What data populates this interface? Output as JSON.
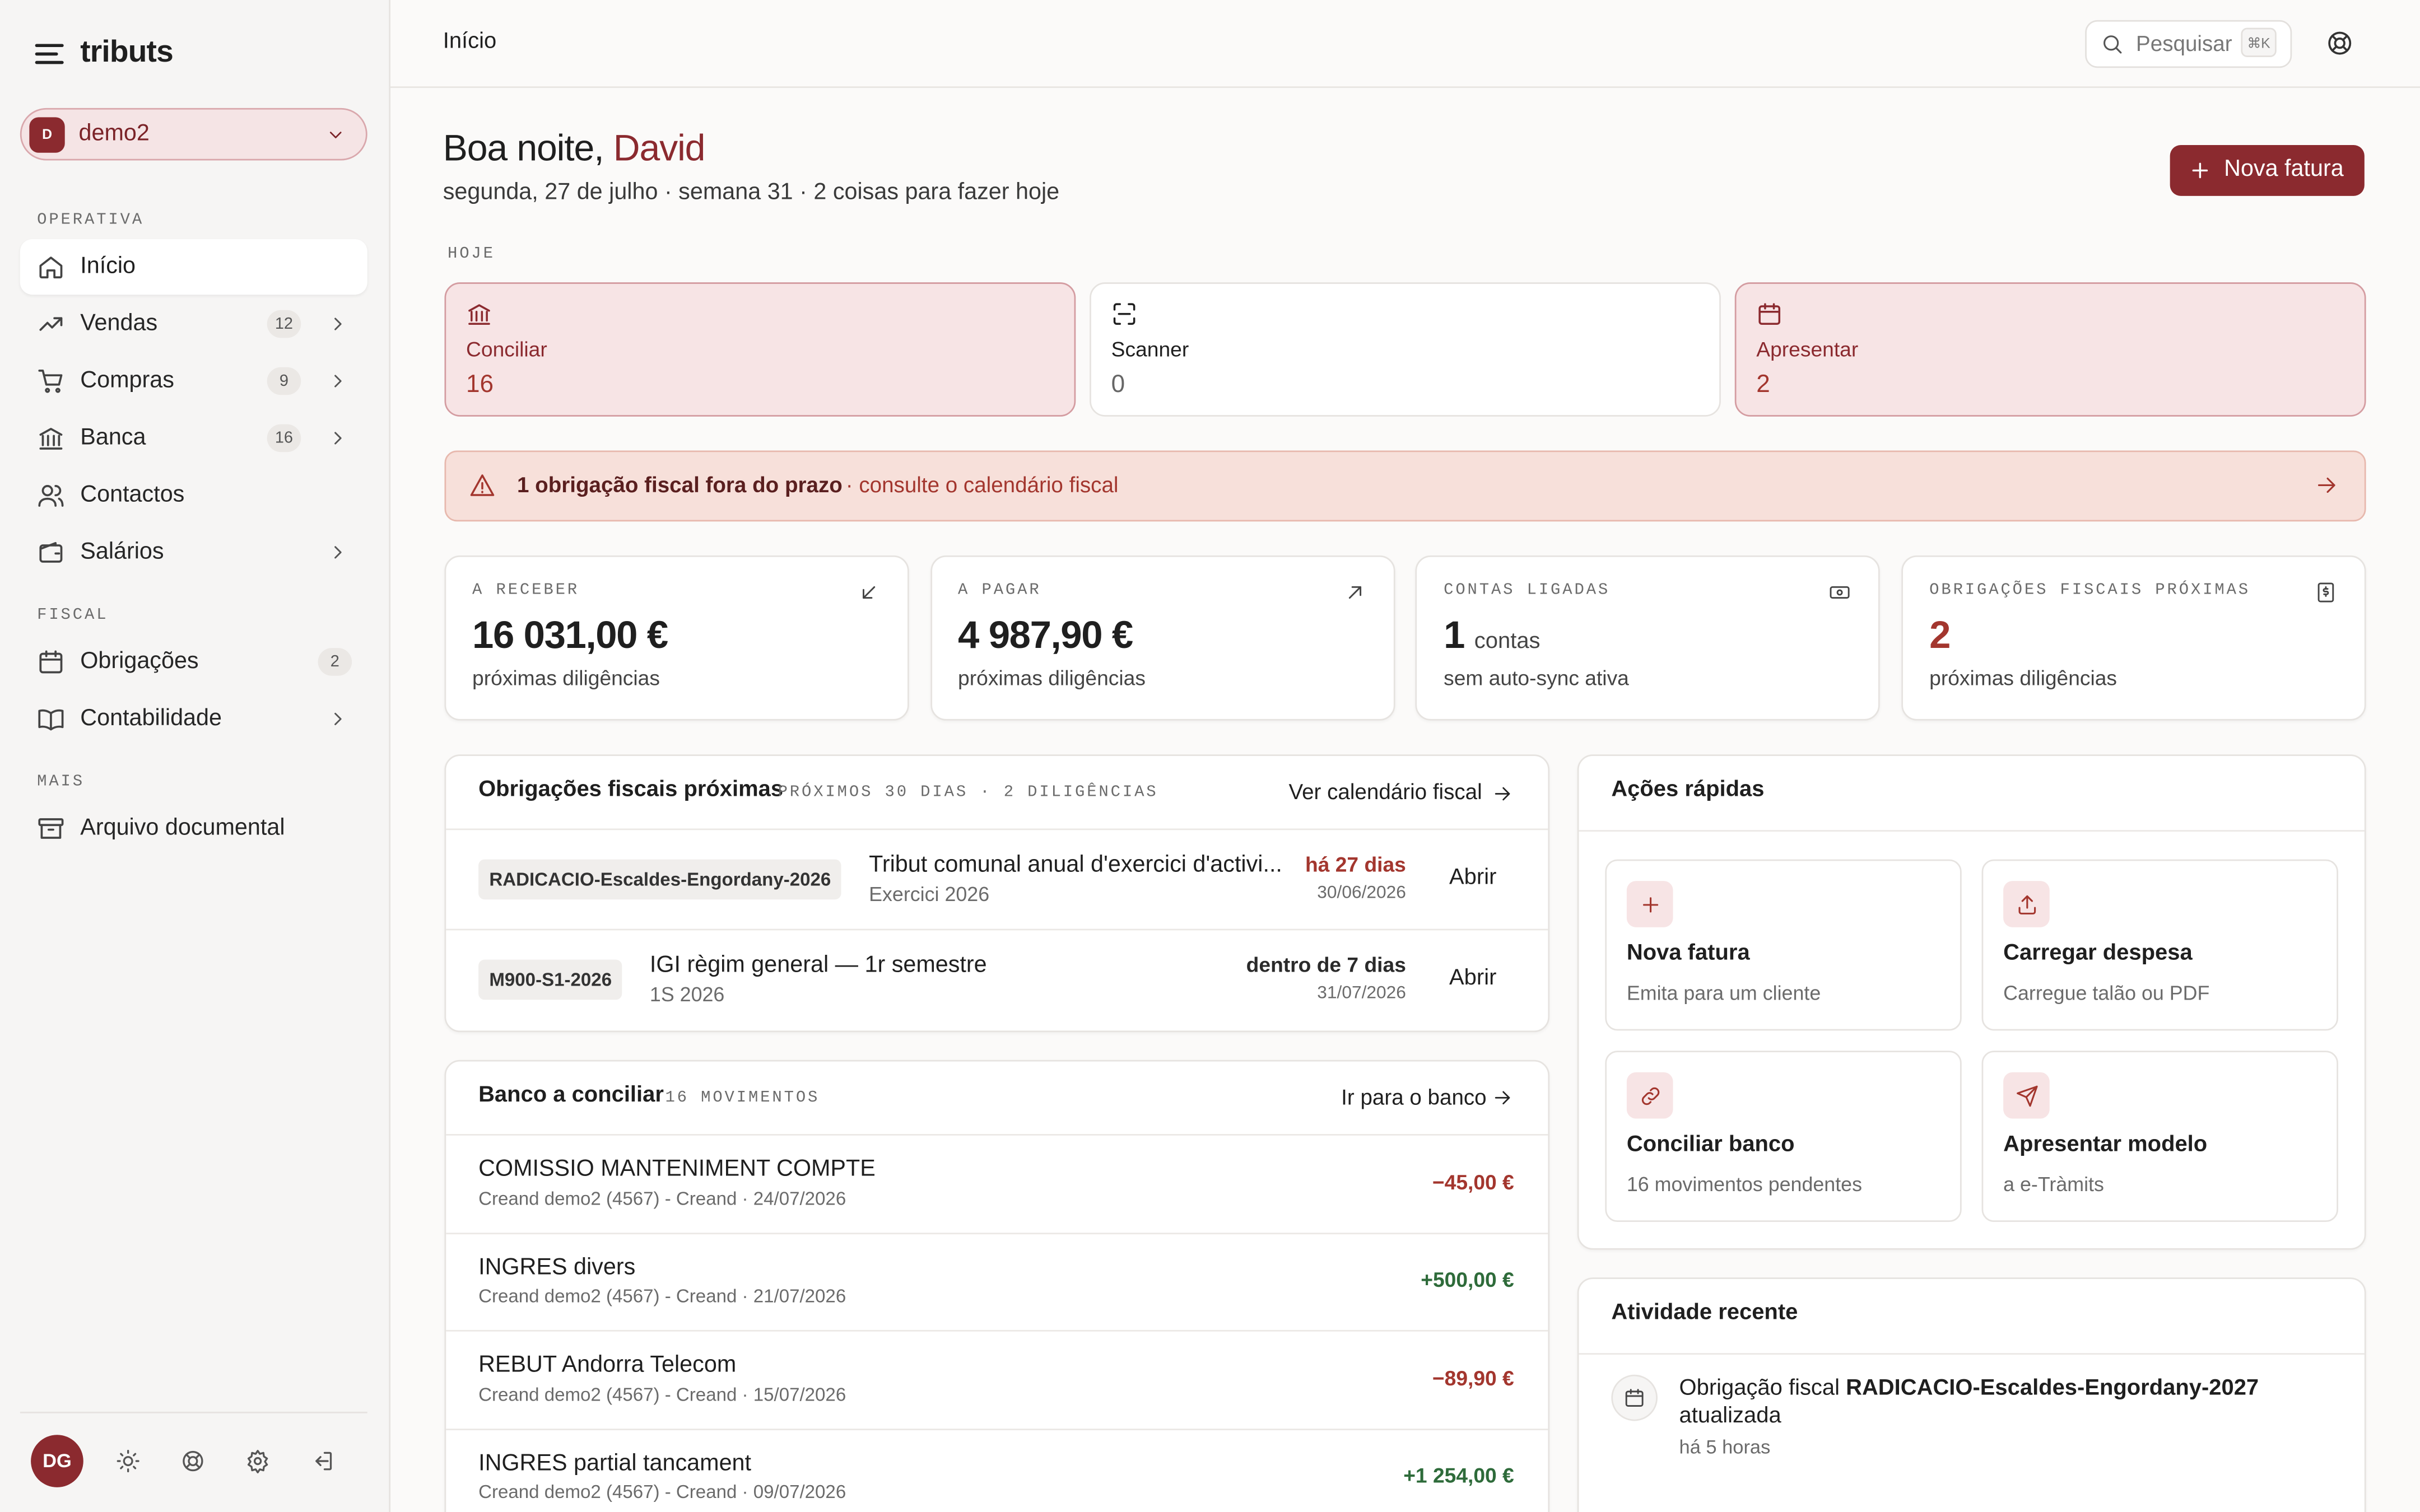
{
  "sidebar": {
    "brand": "tributs",
    "org": {
      "initial": "D",
      "name": "demo2"
    },
    "sections": [
      {
        "title": "OPERATIVA",
        "items": [
          {
            "label": "Início",
            "active": true
          },
          {
            "label": "Vendas",
            "badge": 12,
            "expandable": true
          },
          {
            "label": "Compras",
            "badge": 9,
            "expandable": true
          },
          {
            "label": "Banca",
            "badge": 16,
            "expandable": true
          },
          {
            "label": "Contactos"
          },
          {
            "label": "Salários",
            "expandable": true
          }
        ]
      },
      {
        "title": "FISCAL",
        "items": [
          {
            "label": "Obrigações",
            "badge": 2
          },
          {
            "label": "Contabilidade",
            "expandable": true
          }
        ]
      },
      {
        "title": "MAIS",
        "items": [
          {
            "label": "Arquivo documental"
          }
        ]
      }
    ],
    "user": "DG"
  },
  "topbar": {
    "breadcrumb": "Início",
    "search": "Pesquisar",
    "shortcut": "⌘K"
  },
  "greeting": {
    "prefix": "Boa noite,",
    "name": "David",
    "subtitle": "segunda, 27 de julho · semana 31 · 2 coisas para fazer hoje",
    "button": "Nova fatura"
  },
  "today": {
    "title": "HOJE",
    "cards": [
      {
        "label": "Conciliar",
        "value": 16,
        "color": "#8b2a2f"
      },
      {
        "label": "Scanner",
        "value": 0,
        "color": "#1f1f1f"
      },
      {
        "label": "Apresentar",
        "value": 2,
        "color": "#8b2a2f"
      }
    ]
  },
  "alert": {
    "text": "1 obrigação fiscal fora do prazo",
    "link": "· consulte o calendário fiscal"
  },
  "kpis": [
    {
      "label": "A RECEBER",
      "value": "16 031,00 €",
      "note": "próximas diligências",
      "color": "#1f1f1f"
    },
    {
      "label": "A PAGAR",
      "value": "4 987,90 €",
      "note": "próximas diligências",
      "color": "#1f1f1f"
    },
    {
      "label": "CONTAS LIGADAS",
      "value": "1",
      "unit": "contas",
      "note": "sem auto-sync ativa",
      "color": "#1f1f1f"
    },
    {
      "label": "OBRIGAÇÕES FISCAIS PRÓXIMAS",
      "value": "2",
      "note": "próximas diligências",
      "color": "#a3362e"
    }
  ],
  "obligations": {
    "title": "Obrigações fiscais próximas",
    "meta": "PRÓXIMOS 30 DIAS · 2 DILIGÊNCIAS",
    "link": "Ver calendário fiscal",
    "rows": [
      {
        "code": "RADICACIO-Escaldes-Engordany-2026",
        "title": "Tribut comunal anual d'exercici d'activi...",
        "sub": "Exercici 2026",
        "due": "há 27 dias",
        "date": "30/06/2026",
        "action": "Abrir",
        "due_color": "#a3362e"
      },
      {
        "code": "M900-S1-2026",
        "title": "IGI règim general — 1r semestre",
        "sub": "1S 2026",
        "due": "dentro de 7 dias",
        "date": "31/07/2026",
        "action": "Abrir",
        "due_color": "#2a2a2a"
      }
    ]
  },
  "bank": {
    "title": "Banco a conciliar",
    "meta": "16 MOVIMENTOS",
    "link": "Ir para o banco",
    "rows": [
      {
        "title": "COMISSIO MANTENIMENT COMPTE",
        "sub": "Creand demo2 (4567) - Creand · 24/07/2026",
        "amount": "−45,00 €",
        "color": "#a3362e"
      },
      {
        "title": "INGRES divers",
        "sub": "Creand demo2 (4567) - Creand · 21/07/2026",
        "amount": "+500,00 €",
        "color": "#2e6b3a"
      },
      {
        "title": "REBUT Andorra Telecom",
        "sub": "Creand demo2 (4567) - Creand · 15/07/2026",
        "amount": "−89,90 €",
        "color": "#a3362e"
      },
      {
        "title": "INGRES partial tancament",
        "sub": "Creand demo2 (4567) - Creand · 09/07/2026",
        "amount": "+1 254,00 €",
        "color": "#2e6b3a"
      }
    ]
  },
  "quick": {
    "title": "Ações rápidas",
    "items": [
      {
        "title": "Nova fatura",
        "sub": "Emita para um cliente"
      },
      {
        "title": "Carregar despesa",
        "sub": "Carregue talão ou PDF"
      },
      {
        "title": "Conciliar banco",
        "sub": "16 movimentos pendentes"
      },
      {
        "title": "Apresentar modelo",
        "sub": "a e-Tràmits"
      }
    ]
  },
  "activity": {
    "title": "Atividade recente",
    "items": [
      {
        "prefix": "Obrigação fiscal",
        "code": "RADICACIO-Escaldes-Engordany-2027",
        "suffix": "atualizada",
        "time": "há 5 horas"
      }
    ]
  }
}
